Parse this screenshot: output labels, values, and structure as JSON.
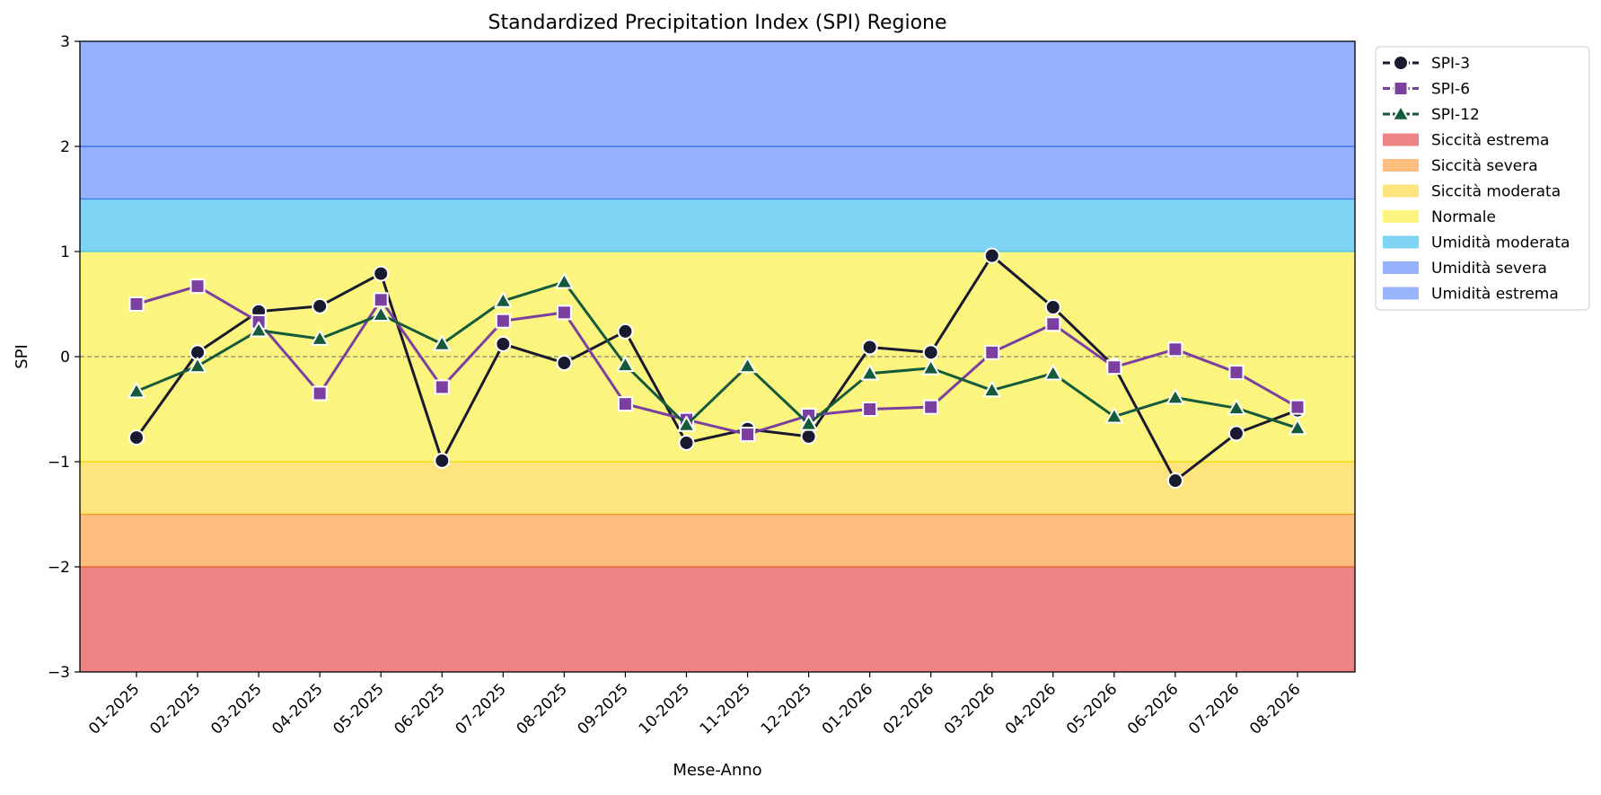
{
  "chart_data": {
    "type": "line",
    "title": "Standardized Precipitation Index (SPI) Regione",
    "xlabel": "Mese-Anno",
    "ylabel": "SPI",
    "ylim": [
      -3,
      3
    ],
    "yticks": [
      -3,
      -2,
      -1,
      0,
      1,
      2,
      3
    ],
    "ytick_labels": [
      "−3",
      "−2",
      "−1",
      "0",
      "1",
      "2",
      "3"
    ],
    "grid": false,
    "legend_position": "outside top-right",
    "categories": [
      "01-2025",
      "02-2025",
      "03-2025",
      "04-2025",
      "05-2025",
      "06-2025",
      "07-2025",
      "08-2025",
      "09-2025",
      "10-2025",
      "11-2025",
      "12-2025",
      "01-2026",
      "02-2026",
      "03-2026",
      "04-2026",
      "05-2026",
      "06-2026",
      "07-2026",
      "08-2026"
    ],
    "series": [
      {
        "name": "SPI-3",
        "color": "#1a1a2e",
        "marker": "circle",
        "values": [
          -0.77,
          0.04,
          0.43,
          0.48,
          0.79,
          -0.99,
          0.12,
          -0.06,
          0.24,
          -0.82,
          -0.69,
          -0.76,
          0.09,
          0.04,
          0.96,
          0.47,
          -0.09,
          -1.18,
          -0.73,
          -0.51
        ]
      },
      {
        "name": "SPI-6",
        "color": "#7b3fa0",
        "marker": "square",
        "values": [
          0.5,
          0.67,
          0.33,
          -0.35,
          0.54,
          -0.29,
          0.34,
          0.42,
          -0.45,
          -0.6,
          -0.74,
          -0.56,
          -0.5,
          -0.48,
          0.04,
          0.31,
          -0.1,
          0.07,
          -0.15,
          -0.48
        ]
      },
      {
        "name": "SPI-12",
        "color": "#155a3a",
        "marker": "triangle",
        "values": [
          -0.33,
          -0.09,
          0.25,
          0.17,
          0.4,
          0.12,
          0.53,
          0.71,
          -0.08,
          -0.65,
          -0.09,
          -0.64,
          -0.16,
          -0.11,
          -0.32,
          -0.16,
          -0.57,
          -0.39,
          -0.49,
          -0.68
        ]
      }
    ],
    "bands": [
      {
        "name": "Siccità estrema",
        "from": -3,
        "to": -2,
        "fill": "#ee8383",
        "edge": "#e06030"
      },
      {
        "name": "Siccità severa",
        "from": -2,
        "to": -1.5,
        "fill": "#fdbd7d",
        "edge": "#f0a020"
      },
      {
        "name": "Siccità moderata",
        "from": -1.5,
        "to": -1,
        "fill": "#fde47f",
        "edge": "#f6d600"
      },
      {
        "name": "Normale",
        "from": -1,
        "to": 1,
        "fill": "#fbf57f",
        "edge": "#3fc8e0"
      },
      {
        "name": "Umidità moderata",
        "from": 1,
        "to": 1.5,
        "fill": "#7fd3f3",
        "edge": "#3f7cf0"
      },
      {
        "name": "Umidità severa",
        "from": 1.5,
        "to": 2,
        "fill": "#96b1fd",
        "edge": "#3f6cf0"
      },
      {
        "name": "Umidità estrema",
        "from": 2,
        "to": 3,
        "fill": "#96b1fd",
        "edge": "none"
      }
    ],
    "reference_line": {
      "y": 0,
      "style": "dashed",
      "color": "#808080"
    },
    "legend": [
      {
        "label": "SPI-3",
        "kind": "line",
        "series": 0
      },
      {
        "label": "SPI-6",
        "kind": "line",
        "series": 1
      },
      {
        "label": "SPI-12",
        "kind": "line",
        "series": 2
      },
      {
        "label": "Siccità estrema",
        "kind": "patch",
        "color": "#ee8383"
      },
      {
        "label": "Siccità severa",
        "kind": "patch",
        "color": "#fdbd7d"
      },
      {
        "label": "Siccità moderata",
        "kind": "patch",
        "color": "#fde47f"
      },
      {
        "label": "Normale",
        "kind": "patch",
        "color": "#fbf57f"
      },
      {
        "label": "Umidità moderata",
        "kind": "patch",
        "color": "#7fd3f3"
      },
      {
        "label": "Umidità severa",
        "kind": "patch",
        "color": "#96b1fd"
      },
      {
        "label": "Umidità estrema",
        "kind": "patch",
        "color": "#9ab4fd"
      }
    ]
  }
}
